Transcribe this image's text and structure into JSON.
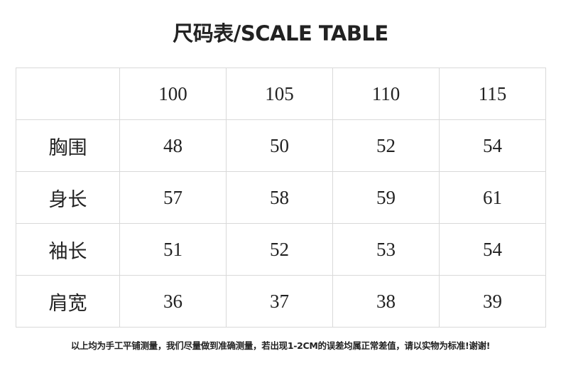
{
  "title": "尺码表/SCALE TABLE",
  "table": {
    "headers": [
      "",
      "100",
      "105",
      "110",
      "115"
    ],
    "rows": [
      {
        "label": "胸围",
        "values": [
          "48",
          "50",
          "52",
          "54"
        ]
      },
      {
        "label": "身长",
        "values": [
          "57",
          "58",
          "59",
          "61"
        ]
      },
      {
        "label": "袖长",
        "values": [
          "51",
          "52",
          "53",
          "54"
        ]
      },
      {
        "label": "肩宽",
        "values": [
          "36",
          "37",
          "38",
          "39"
        ]
      }
    ]
  },
  "note": "以上均为手工平铺测量，我们尽量做到准确测量，若出现1-2CM的误差均属正常差值，请以实物为标准!谢谢!"
}
